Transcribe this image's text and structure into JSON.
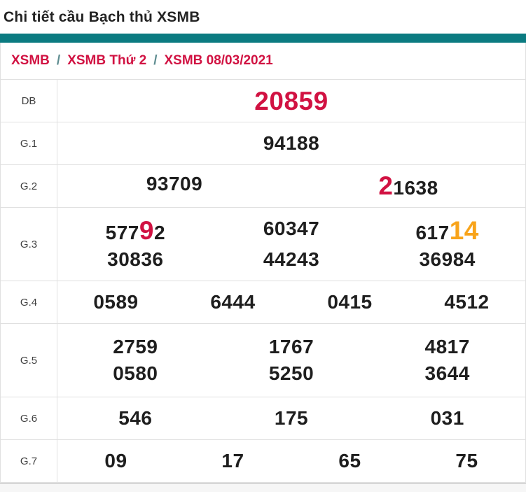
{
  "page_title": "Chi tiết cầu Bạch thủ XSMB",
  "breadcrumb": {
    "separator": "/",
    "items": [
      {
        "label": "XSMB"
      },
      {
        "label": "XSMB Thứ 2"
      },
      {
        "label": "XSMB 08/03/2021"
      }
    ]
  },
  "colors": {
    "accent_teal": "#0b7b81",
    "crimson": "#d11242",
    "orange": "#f8a41b",
    "text_dark": "#1e1e1e",
    "label_gray": "#3f3f3f",
    "border_gray": "#e0e0e0",
    "separator_teal": "#5d8c90",
    "strip_gray": "#f6f6f6"
  },
  "prize_table": {
    "rows": [
      {
        "label": "DB",
        "lines": [
          [
            [
              {
                "text": "20859",
                "color": "crimson",
                "large": true
              }
            ]
          ]
        ]
      },
      {
        "label": "G.1",
        "lines": [
          [
            [
              {
                "text": "94188"
              }
            ]
          ]
        ]
      },
      {
        "label": "G.2",
        "lines": [
          [
            [
              {
                "text": "93709"
              }
            ],
            [
              {
                "text": "2",
                "color": "crimson",
                "large": true
              },
              {
                "text": "1638"
              }
            ]
          ]
        ]
      },
      {
        "label": "G.3",
        "lines": [
          [
            [
              {
                "text": "577"
              },
              {
                "text": "9",
                "color": "crimson",
                "large": true
              },
              {
                "text": "2"
              }
            ],
            [
              {
                "text": "60347"
              }
            ],
            [
              {
                "text": "617"
              },
              {
                "text": "14",
                "color": "orange",
                "large": true
              }
            ]
          ],
          [
            [
              {
                "text": "30836"
              }
            ],
            [
              {
                "text": "44243"
              }
            ],
            [
              {
                "text": "36984"
              }
            ]
          ]
        ]
      },
      {
        "label": "G.4",
        "lines": [
          [
            [
              {
                "text": "0589"
              }
            ],
            [
              {
                "text": "6444"
              }
            ],
            [
              {
                "text": "0415"
              }
            ],
            [
              {
                "text": "4512"
              }
            ]
          ]
        ]
      },
      {
        "label": "G.5",
        "lines": [
          [
            [
              {
                "text": "2759"
              }
            ],
            [
              {
                "text": "1767"
              }
            ],
            [
              {
                "text": "4817"
              }
            ]
          ],
          [
            [
              {
                "text": "0580"
              }
            ],
            [
              {
                "text": "5250"
              }
            ],
            [
              {
                "text": "3644"
              }
            ]
          ]
        ]
      },
      {
        "label": "G.6",
        "lines": [
          [
            [
              {
                "text": "546"
              }
            ],
            [
              {
                "text": "175"
              }
            ],
            [
              {
                "text": "031"
              }
            ]
          ]
        ]
      },
      {
        "label": "G.7",
        "lines": [
          [
            [
              {
                "text": "09"
              }
            ],
            [
              {
                "text": "17"
              }
            ],
            [
              {
                "text": "65"
              }
            ],
            [
              {
                "text": "75"
              }
            ]
          ]
        ]
      }
    ]
  }
}
